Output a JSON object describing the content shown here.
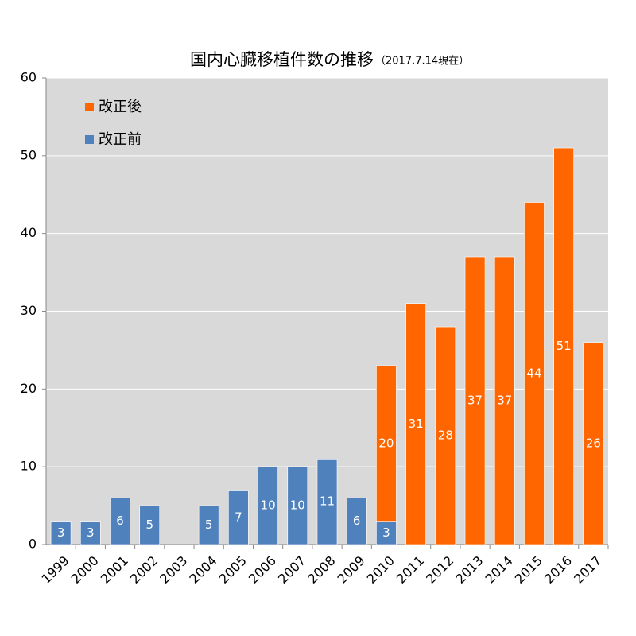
{
  "chart_data": {
    "type": "stacked_bar",
    "title": "国内心臓移植件数の推移",
    "subtitle": "（2017.7.14現在）",
    "categories": [
      "1999",
      "2000",
      "2001",
      "2002",
      "2003",
      "2004",
      "2005",
      "2006",
      "2007",
      "2008",
      "2009",
      "2010",
      "2011",
      "2012",
      "2013",
      "2014",
      "2015",
      "2016",
      "2017"
    ],
    "series": [
      {
        "name": "改正前",
        "color": "#4f81bd",
        "values": [
          3,
          3,
          6,
          5,
          null,
          5,
          7,
          10,
          10,
          11,
          6,
          3,
          null,
          null,
          null,
          null,
          null,
          null,
          null
        ]
      },
      {
        "name": "改正後",
        "color": "#ff6600",
        "values": [
          null,
          null,
          null,
          null,
          null,
          null,
          null,
          null,
          null,
          null,
          null,
          20,
          31,
          28,
          37,
          37,
          44,
          51,
          26
        ]
      }
    ],
    "ylim": [
      0,
      60
    ],
    "yticks": [
      0,
      10,
      20,
      30,
      40,
      50,
      60
    ],
    "grid": true
  }
}
